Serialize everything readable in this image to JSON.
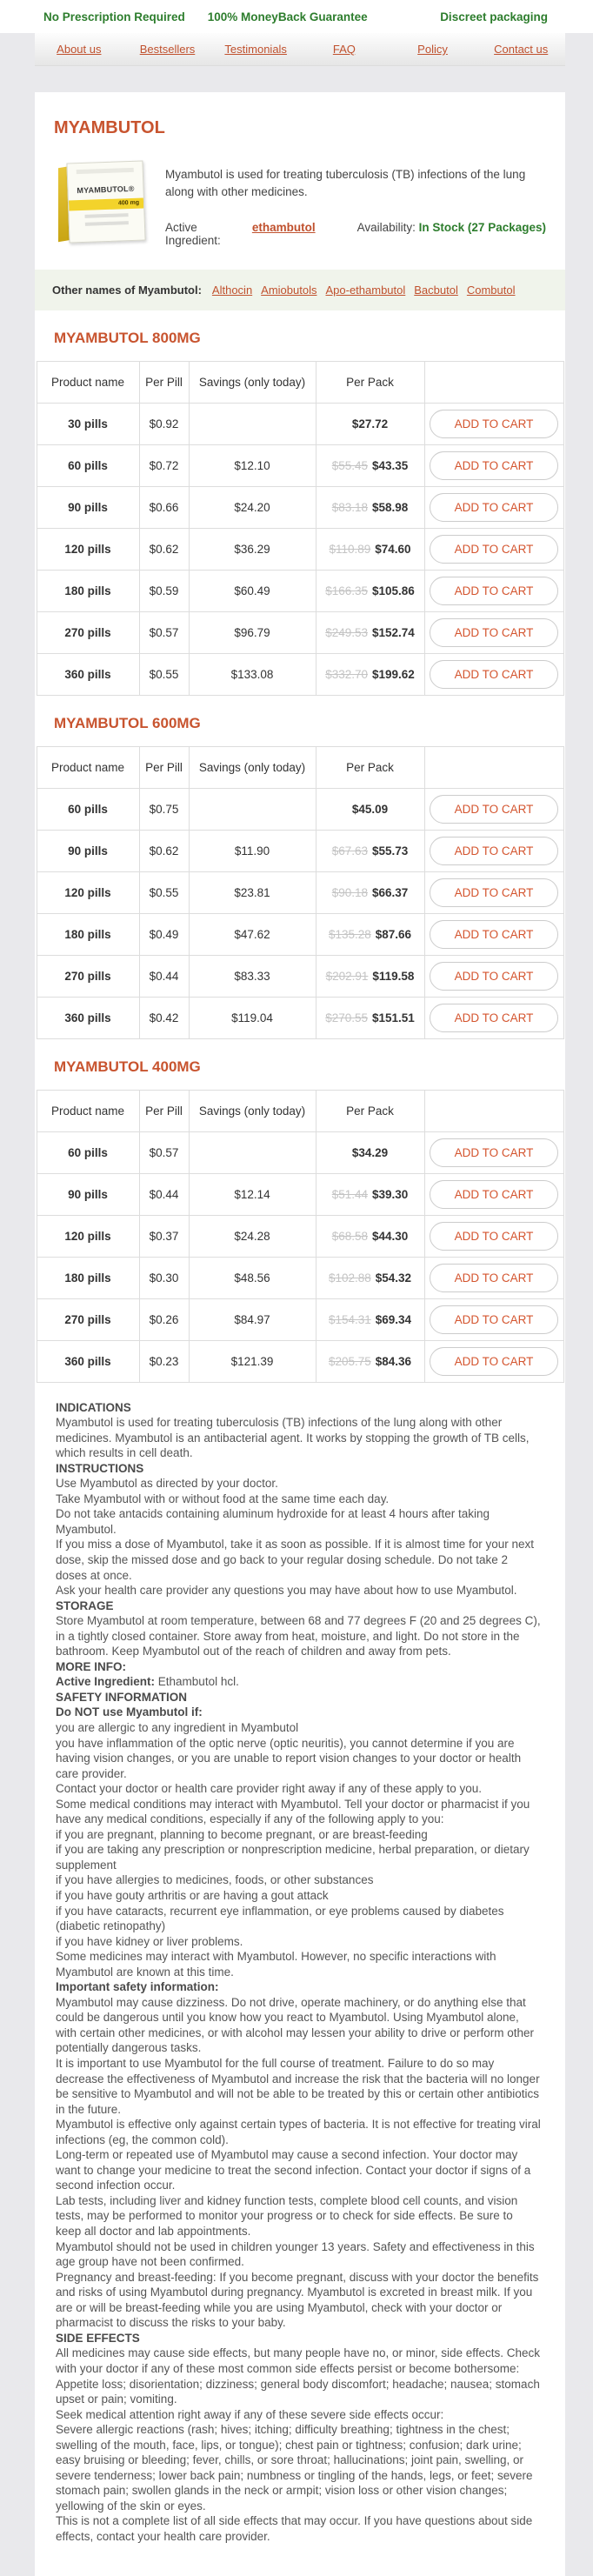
{
  "topbar": {
    "items": [
      "No Prescription Required",
      "100% MoneyBack Guarantee",
      "Discreet packaging"
    ]
  },
  "nav": {
    "items": [
      "About us",
      "Bestsellers",
      "Testimonials",
      "FAQ",
      "Policy",
      "Contact us"
    ]
  },
  "product": {
    "title": "MYAMBUTOL",
    "description": "Myambutol is used for treating tuberculosis (TB) infections of the lung along with other medicines.",
    "active_ingredient_label": "Active Ingredient:",
    "active_ingredient": "ethambutol",
    "availability_label": "Availability:",
    "availability": "In Stock (27 Packages)",
    "box_name": "MYAMBUTOL®",
    "box_dose": "400 mg",
    "other_names_label": "Other names of Myambutol:",
    "other_names": [
      "Althocin",
      "Amiobutols",
      "Apo-ethambutol",
      "Bacbutol",
      "Combutol"
    ]
  },
  "accent_colors": {
    "green": "#2d7d2d",
    "orange": "#c8542f",
    "old_price_gray": "#c4c4c4"
  },
  "tables": [
    {
      "title": "MYAMBUTOL 800MG",
      "headers": [
        "Product name",
        "Per Pill",
        "Savings (only today)",
        "Per Pack"
      ],
      "add_to_cart": "ADD TO CART",
      "rows": [
        {
          "name": "30 pills",
          "per_pill": "$0.92",
          "savings": "",
          "old_price": "",
          "price": "$27.72"
        },
        {
          "name": "60 pills",
          "per_pill": "$0.72",
          "savings": "$12.10",
          "old_price": "$55.45",
          "price": "$43.35"
        },
        {
          "name": "90 pills",
          "per_pill": "$0.66",
          "savings": "$24.20",
          "old_price": "$83.18",
          "price": "$58.98"
        },
        {
          "name": "120 pills",
          "per_pill": "$0.62",
          "savings": "$36.29",
          "old_price": "$110.89",
          "price": "$74.60"
        },
        {
          "name": "180 pills",
          "per_pill": "$0.59",
          "savings": "$60.49",
          "old_price": "$166.35",
          "price": "$105.86"
        },
        {
          "name": "270 pills",
          "per_pill": "$0.57",
          "savings": "$96.79",
          "old_price": "$249.53",
          "price": "$152.74"
        },
        {
          "name": "360 pills",
          "per_pill": "$0.55",
          "savings": "$133.08",
          "old_price": "$332.70",
          "price": "$199.62"
        }
      ]
    },
    {
      "title": "MYAMBUTOL 600MG",
      "headers": [
        "Product name",
        "Per Pill",
        "Savings (only today)",
        "Per Pack"
      ],
      "add_to_cart": "ADD TO CART",
      "rows": [
        {
          "name": "60 pills",
          "per_pill": "$0.75",
          "savings": "",
          "old_price": "",
          "price": "$45.09"
        },
        {
          "name": "90 pills",
          "per_pill": "$0.62",
          "savings": "$11.90",
          "old_price": "$67.63",
          "price": "$55.73"
        },
        {
          "name": "120 pills",
          "per_pill": "$0.55",
          "savings": "$23.81",
          "old_price": "$90.18",
          "price": "$66.37"
        },
        {
          "name": "180 pills",
          "per_pill": "$0.49",
          "savings": "$47.62",
          "old_price": "$135.28",
          "price": "$87.66"
        },
        {
          "name": "270 pills",
          "per_pill": "$0.44",
          "savings": "$83.33",
          "old_price": "$202.91",
          "price": "$119.58"
        },
        {
          "name": "360 pills",
          "per_pill": "$0.42",
          "savings": "$119.04",
          "old_price": "$270.55",
          "price": "$151.51"
        }
      ]
    },
    {
      "title": "MYAMBUTOL 400MG",
      "headers": [
        "Product name",
        "Per Pill",
        "Savings (only today)",
        "Per Pack"
      ],
      "add_to_cart": "ADD TO CART",
      "rows": [
        {
          "name": "60 pills",
          "per_pill": "$0.57",
          "savings": "",
          "old_price": "",
          "price": "$34.29"
        },
        {
          "name": "90 pills",
          "per_pill": "$0.44",
          "savings": "$12.14",
          "old_price": "$51.44",
          "price": "$39.30"
        },
        {
          "name": "120 pills",
          "per_pill": "$0.37",
          "savings": "$24.28",
          "old_price": "$68.58",
          "price": "$44.30"
        },
        {
          "name": "180 pills",
          "per_pill": "$0.30",
          "savings": "$48.56",
          "old_price": "$102.88",
          "price": "$54.32"
        },
        {
          "name": "270 pills",
          "per_pill": "$0.26",
          "savings": "$84.97",
          "old_price": "$154.31",
          "price": "$69.34"
        },
        {
          "name": "360 pills",
          "per_pill": "$0.23",
          "savings": "$121.39",
          "old_price": "$205.75",
          "price": "$84.36"
        }
      ]
    }
  ],
  "info_blocks": [
    {
      "b": true,
      "t": "INDICATIONS"
    },
    {
      "t": "Myambutol is used for treating tuberculosis (TB) infections of the lung along with other medicines. Myambutol is an antibacterial agent. It works by stopping the growth of TB cells, which results in cell death."
    },
    {
      "b": true,
      "t": "INSTRUCTIONS"
    },
    {
      "t": "Use Myambutol as directed by your doctor."
    },
    {
      "t": "Take Myambutol with or without food at the same time each day."
    },
    {
      "t": "Do not take antacids containing aluminum hydroxide for at least 4 hours after taking Myambutol."
    },
    {
      "t": "If you miss a dose of Myambutol, take it as soon as possible. If it is almost time for your next dose, skip the missed dose and go back to your regular dosing schedule. Do not take 2 doses at once."
    },
    {
      "t": "Ask your health care provider any questions you may have about how to use Myambutol."
    },
    {
      "b": true,
      "t": "STORAGE"
    },
    {
      "t": "Store Myambutol at room temperature, between 68 and 77 degrees F (20 and 25 degrees C), in a tightly closed container. Store away from heat, moisture, and light. Do not store in the bathroom. Keep Myambutol out of the reach of children and away from pets."
    },
    {
      "b": true,
      "t": "MORE INFO:"
    },
    {
      "label": "Active Ingredient:",
      "t": " Ethambutol hcl."
    },
    {
      "b": true,
      "t": "SAFETY INFORMATION"
    },
    {
      "b": true,
      "t": "Do NOT use Myambutol if:"
    },
    {
      "t": "you are allergic to any ingredient in Myambutol"
    },
    {
      "t": "you have inflammation of the optic nerve (optic neuritis), you cannot determine if you are having vision changes, or you are unable to report vision changes to your doctor or health care provider."
    },
    {
      "t": "Contact your doctor or health care provider right away if any of these apply to you."
    },
    {
      "t": "Some medical conditions may interact with Myambutol. Tell your doctor or pharmacist if you have any medical conditions, especially if any of the following apply to you:"
    },
    {
      "t": "if you are pregnant, planning to become pregnant, or are breast-feeding"
    },
    {
      "t": "if you are taking any prescription or nonprescription medicine, herbal preparation, or dietary supplement"
    },
    {
      "t": "if you have allergies to medicines, foods, or other substances"
    },
    {
      "t": "if you have gouty arthritis or are having a gout attack"
    },
    {
      "t": "if you have cataracts, recurrent eye inflammation, or eye problems caused by diabetes (diabetic retinopathy)"
    },
    {
      "t": "if you have kidney or liver problems."
    },
    {
      "t": "Some medicines may interact with Myambutol. However, no specific interactions with Myambutol are known at this time."
    },
    {
      "b": true,
      "t": "Important safety information:"
    },
    {
      "t": "Myambutol may cause dizziness. Do not drive, operate machinery, or do anything else that could be dangerous until you know how you react to Myambutol. Using Myambutol alone, with certain other medicines, or with alcohol may lessen your ability to drive or perform other potentially dangerous tasks."
    },
    {
      "t": "It is important to use Myambutol for the full course of treatment. Failure to do so may decrease the effectiveness of Myambutol and increase the risk that the bacteria will no longer be sensitive to Myambutol and will not be able to be treated by this or certain other antibiotics in the future."
    },
    {
      "t": "Myambutol is effective only against certain types of bacteria. It is not effective for treating viral infections (eg, the common cold)."
    },
    {
      "t": "Long-term or repeated use of Myambutol may cause a second infection. Your doctor may want to change your medicine to treat the second infection. Contact your doctor if signs of a second infection occur."
    },
    {
      "t": "Lab tests, including liver and kidney function tests, complete blood cell counts, and vision tests, may be performed to monitor your progress or to check for side effects. Be sure to keep all doctor and lab appointments."
    },
    {
      "t": "Myambutol should not be used in children younger 13 years. Safety and effectiveness in this age group have not been confirmed."
    },
    {
      "t": "Pregnancy and breast-feeding: If you become pregnant, discuss with your doctor the benefits and risks of using Myambutol during pregnancy. Myambutol is excreted in breast milk. If you are or will be breast-feeding while you are using Myambutol, check with your doctor or pharmacist to discuss the risks to your baby."
    },
    {
      "b": true,
      "t": "SIDE EFFECTS"
    },
    {
      "t": "All medicines may cause side effects, but many people have no, or minor, side effects. Check with your doctor if any of these most common side effects persist or become bothersome:"
    },
    {
      "t": "Appetite loss; disorientation; dizziness; general body discomfort; headache; nausea; stomach upset or pain; vomiting."
    },
    {
      "t": "Seek medical attention right away if any of these severe side effects occur:"
    },
    {
      "t": "Severe allergic reactions (rash; hives; itching; difficulty breathing; tightness in the chest; swelling of the mouth, face, lips, or tongue); chest pain or tightness; confusion; dark urine; easy bruising or bleeding; fever, chills, or sore throat; hallucinations; joint pain, swelling, or severe tenderness; lower back pain; numbness or tingling of the hands, legs, or feet; severe stomach pain; swollen glands in the neck or armpit; vision loss or other vision changes; yellowing of the skin or eyes."
    },
    {
      "t": "This is not a complete list of all side effects that may occur. If you have questions about side effects, contact your health care provider."
    }
  ]
}
